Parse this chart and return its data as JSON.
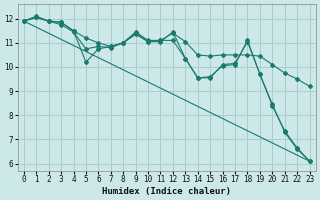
{
  "xlabel": "Humidex (Indice chaleur)",
  "bg_color": "#cce8e8",
  "grid_color": "#aacccc",
  "line_color": "#1a7a6e",
  "xlim": [
    -0.5,
    23.5
  ],
  "ylim": [
    5.7,
    12.6
  ],
  "yticks": [
    6,
    7,
    8,
    9,
    10,
    11,
    12
  ],
  "xticks": [
    0,
    1,
    2,
    3,
    4,
    5,
    6,
    7,
    8,
    9,
    10,
    11,
    12,
    13,
    14,
    15,
    16,
    17,
    18,
    19,
    20,
    21,
    22,
    23
  ],
  "series": [
    {
      "x": [
        0,
        1,
        2,
        3,
        4,
        5,
        6,
        7,
        8,
        9,
        10,
        11,
        12,
        13,
        14,
        15,
        16,
        17,
        18,
        19,
        20,
        21,
        22,
        23
      ],
      "y": [
        11.9,
        12.1,
        11.9,
        11.85,
        11.5,
        10.2,
        10.75,
        10.85,
        11.0,
        11.35,
        11.05,
        11.05,
        11.45,
        10.35,
        9.55,
        9.55,
        10.1,
        10.15,
        11.05,
        9.7,
        8.4,
        7.35,
        6.65,
        6.1
      ]
    },
    {
      "x": [
        0,
        1,
        2,
        3,
        4,
        5,
        6,
        7,
        8,
        9,
        10,
        11,
        12,
        13,
        14,
        15,
        16,
        17,
        18,
        19,
        20,
        21,
        22,
        23
      ],
      "y": [
        11.9,
        12.05,
        11.9,
        11.85,
        11.5,
        11.2,
        11.0,
        10.85,
        11.0,
        11.45,
        11.1,
        11.1,
        11.4,
        11.05,
        10.5,
        10.45,
        10.5,
        10.5,
        10.5,
        10.45,
        10.1,
        9.75,
        9.5,
        9.2
      ]
    },
    {
      "x": [
        0,
        23
      ],
      "y": [
        11.9,
        6.1
      ],
      "no_marker": true
    },
    {
      "x": [
        0,
        1,
        2,
        3,
        4,
        5,
        6,
        7,
        8,
        9,
        10,
        11,
        12,
        13,
        14,
        15,
        16,
        17,
        18,
        19,
        20,
        21,
        22,
        23
      ],
      "y": [
        11.9,
        12.05,
        11.9,
        11.75,
        11.45,
        10.75,
        10.85,
        10.8,
        11.0,
        11.4,
        11.05,
        11.1,
        11.1,
        10.35,
        9.55,
        9.6,
        10.05,
        10.1,
        11.1,
        9.7,
        8.45,
        7.3,
        6.6,
        6.1
      ]
    }
  ]
}
